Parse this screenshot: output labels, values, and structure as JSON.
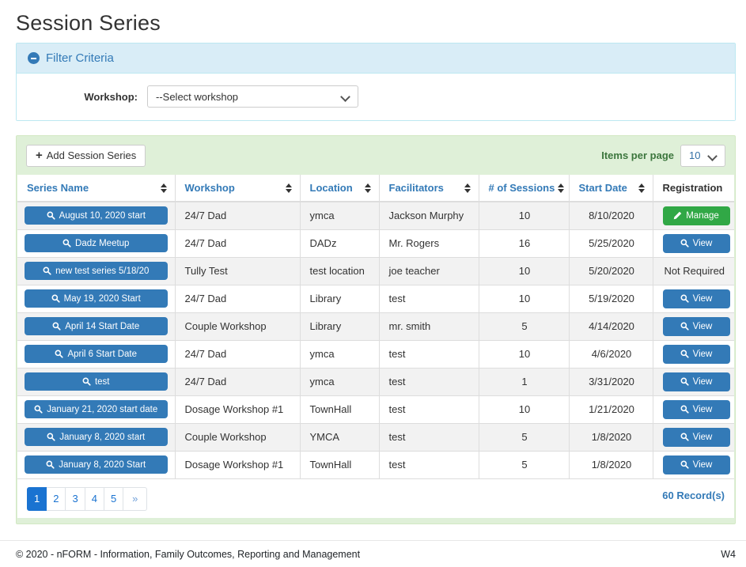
{
  "page": {
    "title": "Session Series"
  },
  "filter": {
    "title": "Filter Criteria",
    "workshop_label": "Workshop:",
    "workshop_selected": "--Select workshop"
  },
  "toolbar": {
    "add_button_label": "Add Session Series",
    "items_per_page_label": "Items per page",
    "items_per_page_value": "10"
  },
  "table": {
    "columns": [
      {
        "label": "Series Name",
        "sortable": true
      },
      {
        "label": "Workshop",
        "sortable": true
      },
      {
        "label": "Location",
        "sortable": true
      },
      {
        "label": "Facilitators",
        "sortable": true
      },
      {
        "label": "# of Sessions",
        "sortable": true
      },
      {
        "label": "Start Date",
        "sortable": true
      },
      {
        "label": "Registration",
        "sortable": false
      }
    ],
    "rows": [
      {
        "series": "August 10, 2020 start",
        "workshop": "24/7 Dad",
        "location": "ymca",
        "facilitators": "Jackson Murphy",
        "sessions": "10",
        "start_date": "8/10/2020",
        "registration": {
          "type": "manage",
          "label": "Manage"
        }
      },
      {
        "series": "Dadz Meetup",
        "workshop": "24/7 Dad",
        "location": "DADz",
        "facilitators": "Mr. Rogers",
        "sessions": "16",
        "start_date": "5/25/2020",
        "registration": {
          "type": "view",
          "label": "View"
        }
      },
      {
        "series": "new test series 5/18/20",
        "workshop": "Tully Test",
        "location": "test location",
        "facilitators": "joe teacher",
        "sessions": "10",
        "start_date": "5/20/2020",
        "registration": {
          "type": "text",
          "label": "Not Required"
        }
      },
      {
        "series": "May 19, 2020 Start",
        "workshop": "24/7 Dad",
        "location": "Library",
        "facilitators": "test",
        "sessions": "10",
        "start_date": "5/19/2020",
        "registration": {
          "type": "view",
          "label": "View"
        }
      },
      {
        "series": "April 14 Start Date",
        "workshop": "Couple Workshop",
        "location": "Library",
        "facilitators": "mr. smith",
        "sessions": "5",
        "start_date": "4/14/2020",
        "registration": {
          "type": "view",
          "label": "View"
        }
      },
      {
        "series": "April 6 Start Date",
        "workshop": "24/7 Dad",
        "location": "ymca",
        "facilitators": "test",
        "sessions": "10",
        "start_date": "4/6/2020",
        "registration": {
          "type": "view",
          "label": "View"
        }
      },
      {
        "series": "test",
        "workshop": "24/7 Dad",
        "location": "ymca",
        "facilitators": "test",
        "sessions": "1",
        "start_date": "3/31/2020",
        "registration": {
          "type": "view",
          "label": "View"
        }
      },
      {
        "series": "January 21, 2020 start date",
        "workshop": "Dosage Workshop #1",
        "location": "TownHall",
        "facilitators": "test",
        "sessions": "10",
        "start_date": "1/21/2020",
        "registration": {
          "type": "view",
          "label": "View"
        }
      },
      {
        "series": "January 8, 2020 start",
        "workshop": "Couple Workshop",
        "location": "YMCA",
        "facilitators": "test",
        "sessions": "5",
        "start_date": "1/8/2020",
        "registration": {
          "type": "view",
          "label": "View"
        }
      },
      {
        "series": "January 8, 2020 Start",
        "workshop": "Dosage Workshop #1",
        "location": "TownHall",
        "facilitators": "test",
        "sessions": "5",
        "start_date": "1/8/2020",
        "registration": {
          "type": "view",
          "label": "View"
        }
      }
    ]
  },
  "pagination": {
    "pages": [
      "1",
      "2",
      "3",
      "4",
      "5"
    ],
    "active_page": "1",
    "next_label": "»",
    "record_count": "60 Record(s)"
  },
  "footer": {
    "copyright": "© 2020 - nFORM - Information, Family Outcomes, Reporting and Management",
    "version": "W4"
  },
  "icons": {
    "filter_collapse": "minus-circle-icon",
    "series_button": "magnifier-icon",
    "manage_button": "pencil-icon",
    "view_button": "magnifier-icon",
    "add_button": "plus-icon"
  },
  "colors": {
    "primary_blue": "#337ab7",
    "success_green": "#31a846",
    "filter_header_bg": "#d9edf7",
    "card_band_bg": "#dff0d8",
    "pagination_active_blue": "#1a73d1",
    "row_stripe": "#f2f2f2"
  }
}
